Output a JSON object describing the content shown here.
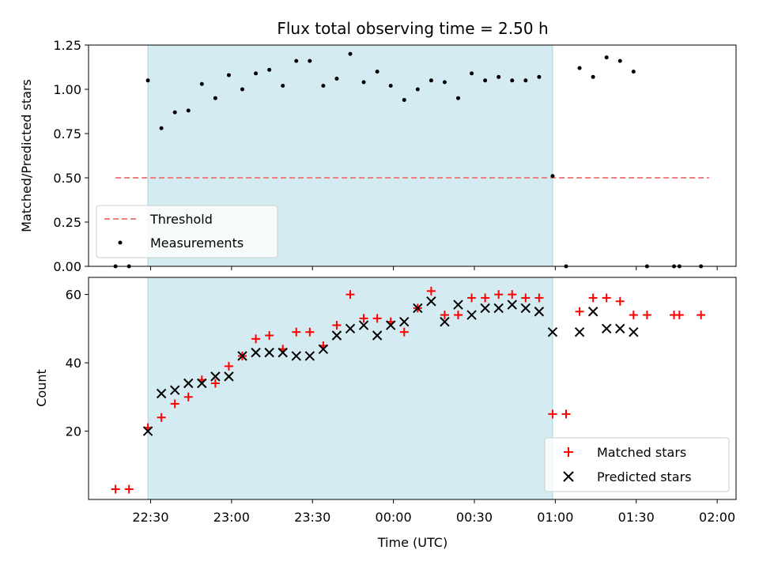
{
  "figure": {
    "title": "Flux total observing time = 2.50 h",
    "xlabel": "Time (UTC)",
    "colors": {
      "shade": "#d4ebf1",
      "threshold": "#f08080",
      "matched": "#ff0000",
      "predicted": "#000000"
    }
  },
  "chart_data": [
    {
      "type": "scatter",
      "ylabel": "Matched/Predicted stars",
      "xlim": [
        "22:07",
        "02:07"
      ],
      "ylim": [
        0,
        1.25
      ],
      "yticks": [
        "0.00",
        "0.25",
        "0.50",
        "0.75",
        "1.00",
        "1.25"
      ],
      "shaded_span": [
        "22:29",
        "00:59"
      ],
      "threshold": {
        "name": "Threshold",
        "value": 0.5,
        "x_range": [
          "22:17",
          "01:57"
        ]
      },
      "legend_position": "lower left",
      "series": [
        {
          "name": "Measurements",
          "x": [
            "22:17",
            "22:22",
            "22:29",
            "22:34",
            "22:39",
            "22:44",
            "22:49",
            "22:54",
            "22:59",
            "23:04",
            "23:09",
            "23:14",
            "23:19",
            "23:24",
            "23:29",
            "23:34",
            "23:39",
            "23:44",
            "23:49",
            "23:54",
            "23:59",
            "00:04",
            "00:09",
            "00:14",
            "00:19",
            "00:24",
            "00:29",
            "00:34",
            "00:39",
            "00:44",
            "00:49",
            "00:54",
            "00:59",
            "01:04",
            "01:09",
            "01:14",
            "01:19",
            "01:24",
            "01:29",
            "01:34",
            "01:44",
            "01:46",
            "01:54"
          ],
          "y": [
            0.0,
            0.0,
            1.05,
            0.78,
            0.87,
            0.88,
            1.03,
            0.95,
            1.08,
            1.0,
            1.09,
            1.11,
            1.02,
            1.16,
            1.16,
            1.02,
            1.06,
            1.2,
            1.04,
            1.1,
            1.02,
            0.94,
            1.0,
            1.05,
            1.04,
            0.95,
            1.09,
            1.05,
            1.07,
            1.05,
            1.05,
            1.07,
            0.51,
            0.0,
            1.12,
            1.07,
            1.18,
            1.16,
            1.1,
            0.0,
            0.0,
            0.0,
            0.0
          ]
        }
      ]
    },
    {
      "type": "scatter",
      "ylabel": "Count",
      "xlim": [
        "22:07",
        "02:07"
      ],
      "ylim": [
        0,
        65
      ],
      "yticks": [
        "20",
        "40",
        "60"
      ],
      "xticks": [
        "22:30",
        "23:00",
        "23:30",
        "00:00",
        "00:30",
        "01:00",
        "01:30",
        "02:00"
      ],
      "shaded_span": [
        "22:29",
        "00:59"
      ],
      "legend_position": "lower right",
      "series": [
        {
          "name": "Matched stars",
          "marker": "+",
          "x": [
            "22:17",
            "22:22",
            "22:29",
            "22:34",
            "22:39",
            "22:44",
            "22:49",
            "22:54",
            "22:59",
            "23:04",
            "23:09",
            "23:14",
            "23:19",
            "23:24",
            "23:29",
            "23:34",
            "23:39",
            "23:44",
            "23:49",
            "23:54",
            "23:59",
            "00:04",
            "00:09",
            "00:14",
            "00:19",
            "00:24",
            "00:29",
            "00:34",
            "00:39",
            "00:44",
            "00:49",
            "00:54",
            "00:59",
            "01:04",
            "01:09",
            "01:14",
            "01:19",
            "01:24",
            "01:29",
            "01:34",
            "01:44",
            "01:46",
            "01:54"
          ],
          "y": [
            3,
            3,
            21,
            24,
            28,
            30,
            35,
            34,
            39,
            42,
            47,
            48,
            44,
            49,
            49,
            45,
            51,
            60,
            53,
            53,
            52,
            49,
            56,
            61,
            54,
            54,
            59,
            59,
            60,
            60,
            59,
            59,
            25,
            25,
            55,
            59,
            59,
            58,
            54,
            54,
            54,
            54,
            54
          ]
        },
        {
          "name": "Predicted stars",
          "marker": "x",
          "x": [
            "22:29",
            "22:34",
            "22:39",
            "22:44",
            "22:49",
            "22:54",
            "22:59",
            "23:04",
            "23:09",
            "23:14",
            "23:19",
            "23:24",
            "23:29",
            "23:34",
            "23:39",
            "23:44",
            "23:49",
            "23:54",
            "23:59",
            "00:04",
            "00:09",
            "00:14",
            "00:19",
            "00:24",
            "00:29",
            "00:34",
            "00:39",
            "00:44",
            "00:49",
            "00:54",
            "00:59",
            "01:09",
            "01:14",
            "01:19",
            "01:24",
            "01:29"
          ],
          "y": [
            20,
            31,
            32,
            34,
            34,
            36,
            36,
            42,
            43,
            43,
            43,
            42,
            42,
            44,
            48,
            50,
            51,
            48,
            51,
            52,
            56,
            58,
            52,
            57,
            54,
            56,
            56,
            57,
            56,
            55,
            49,
            49,
            55,
            50,
            50,
            49
          ]
        }
      ]
    }
  ]
}
